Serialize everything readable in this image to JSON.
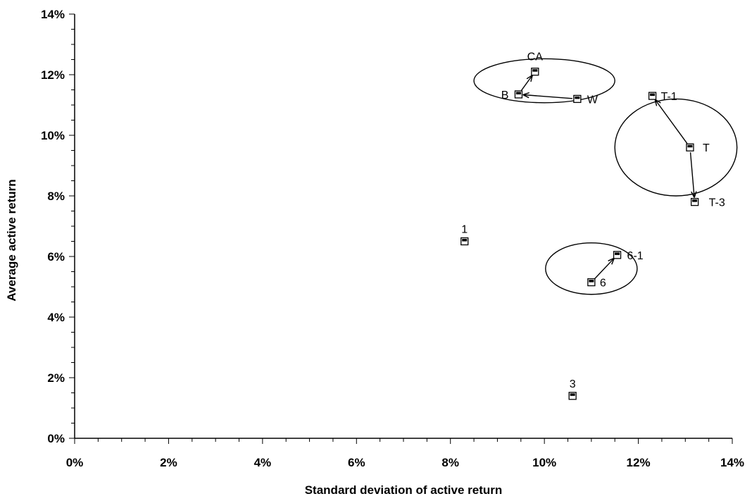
{
  "chart_data": {
    "type": "scatter",
    "xlabel": "Standard deviation of active return",
    "ylabel": "Average active return",
    "xlim": [
      0,
      14
    ],
    "ylim": [
      0,
      14
    ],
    "x_ticks": [
      "0%",
      "2%",
      "4%",
      "6%",
      "8%",
      "10%",
      "12%",
      "14%"
    ],
    "y_ticks": [
      "0%",
      "2%",
      "4%",
      "6%",
      "8%",
      "10%",
      "12%",
      "14%"
    ],
    "grid": false,
    "points": [
      {
        "label": "CA",
        "x": 9.8,
        "y": 12.1
      },
      {
        "label": "B",
        "x": 9.45,
        "y": 11.35
      },
      {
        "label": "W",
        "x": 10.7,
        "y": 11.2
      },
      {
        "label": "T-1",
        "x": 12.3,
        "y": 11.3
      },
      {
        "label": "T",
        "x": 13.1,
        "y": 9.6
      },
      {
        "label": "T-3",
        "x": 13.2,
        "y": 7.8
      },
      {
        "label": "1",
        "x": 8.3,
        "y": 6.5
      },
      {
        "label": "6-1",
        "x": 11.55,
        "y": 6.05
      },
      {
        "label": "6",
        "x": 11.0,
        "y": 5.15
      },
      {
        "label": "3",
        "x": 10.6,
        "y": 1.4
      }
    ],
    "arrows": [
      {
        "from": "W",
        "to": "B"
      },
      {
        "from": "B",
        "to": "CA"
      },
      {
        "from": "T",
        "to": "T-1"
      },
      {
        "from": "T",
        "to": "T-3"
      },
      {
        "from": "6",
        "to": "6-1"
      }
    ],
    "groups": [
      {
        "members": [
          "CA",
          "B",
          "W"
        ],
        "cx": 10.0,
        "cy": 11.8,
        "rx": 3.0,
        "ry": 1.45
      },
      {
        "members": [
          "T-1",
          "T",
          "T-3"
        ],
        "cx": 12.8,
        "cy": 9.6,
        "rx": 2.6,
        "ry": 3.2
      },
      {
        "members": [
          "6-1",
          "6"
        ],
        "cx": 11.0,
        "cy": 5.6,
        "rx": 1.95,
        "ry": 1.7
      }
    ]
  }
}
